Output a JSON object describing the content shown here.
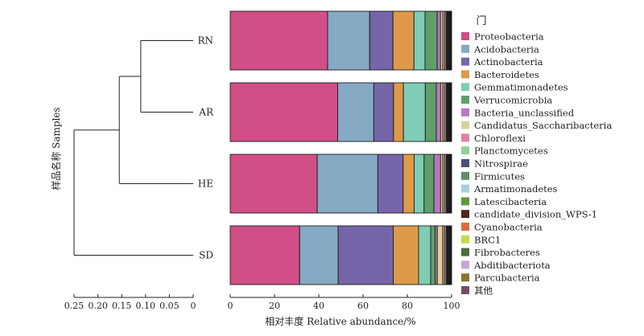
{
  "chart_data": {
    "type": "bar",
    "orientation": "horizontal",
    "stacked": true,
    "samples": [
      "RN",
      "AR",
      "HE",
      "SD"
    ],
    "xlabel": "相对丰度 Relative abundance/%",
    "ylabel": "样品名称 Samples",
    "xlim": [
      0,
      100
    ],
    "xticks": [
      0,
      20,
      40,
      60,
      80,
      100
    ],
    "legend_title": "门",
    "legend_position": "right",
    "dendrogram": {
      "axis_ticks": [
        "0.25",
        "0.20",
        "0.15",
        "0.10",
        "0.05",
        "0"
      ],
      "axis_values": [
        0.25,
        0.2,
        0.15,
        0.1,
        0.05,
        0
      ],
      "merges": [
        {
          "members": [
            "RN",
            "AR"
          ],
          "height": 0.11
        },
        {
          "members": [
            "RN-AR",
            "HE"
          ],
          "height": 0.155
        },
        {
          "members": [
            "RN-AR-HE",
            "SD"
          ],
          "height": 0.25
        }
      ]
    },
    "series": [
      {
        "name": "Proteobacteria",
        "color": "#d14f86",
        "values": [
          44.0,
          49.0,
          39.5,
          31.5
        ]
      },
      {
        "name": "Acidobacteria",
        "color": "#86a9c4",
        "values": [
          19.0,
          16.5,
          27.5,
          17.5
        ]
      },
      {
        "name": "Actinobacteria",
        "color": "#7665a8",
        "values": [
          10.5,
          9.0,
          11.5,
          25.0
        ]
      },
      {
        "name": "Bacteroidetes",
        "color": "#dc9a4a",
        "values": [
          9.5,
          4.5,
          5.0,
          11.5
        ]
      },
      {
        "name": "Gemmatimonadetes",
        "color": "#7fcdb6",
        "values": [
          5.0,
          10.0,
          4.5,
          5.5
        ]
      },
      {
        "name": "Verrucomicrobia",
        "color": "#5ea06a",
        "values": [
          5.5,
          5.0,
          4.5,
          2.0
        ]
      },
      {
        "name": "Bacteria_unclassified",
        "color": "#b579bd",
        "values": [
          1.5,
          2.0,
          3.0,
          1.0
        ]
      },
      {
        "name": "Candidatus_Saccharibacteria",
        "color": "#d9d39a",
        "values": [
          1.0,
          1.0,
          1.0,
          2.5
        ]
      },
      {
        "name": "Chloroflexi",
        "color": "#e3829c",
        "values": [
          1.0,
          1.0,
          1.0,
          1.0
        ]
      },
      {
        "name": "Planctomycetes",
        "color": "#8fd097",
        "values": [
          0.6,
          0.6,
          0.6,
          0.6
        ]
      },
      {
        "name": "Nitrospirae",
        "color": "#4a4e7a",
        "values": [
          0.4,
          0.4,
          0.4,
          0.4
        ]
      },
      {
        "name": "Firmicutes",
        "color": "#5f8c6c",
        "values": [
          0.4,
          0.4,
          0.4,
          0.4
        ]
      },
      {
        "name": "Armatimonadetes",
        "color": "#a9cfe0",
        "values": [
          0.3,
          0.3,
          0.3,
          0.3
        ]
      },
      {
        "name": "Latescibacteria",
        "color": "#5e9a3a",
        "values": [
          0.3,
          0.3,
          0.3,
          0.3
        ]
      },
      {
        "name": "candidate_division_WPS-1",
        "color": "#4a2a1c",
        "values": [
          0.2,
          0.2,
          0.2,
          0.2
        ]
      },
      {
        "name": "Cyanobacteria",
        "color": "#d86e3e",
        "values": [
          0.2,
          0.2,
          0.2,
          0.2
        ]
      },
      {
        "name": "BRC1",
        "color": "#c9d84c",
        "values": [
          0.2,
          0.2,
          0.2,
          0.2
        ]
      },
      {
        "name": "Fibrobacteres",
        "color": "#4b6c3a",
        "values": [
          0.1,
          0.1,
          0.1,
          0.1
        ]
      },
      {
        "name": "Abditibacteriota",
        "color": "#c7a6d6",
        "values": [
          0.1,
          0.1,
          0.1,
          0.1
        ]
      },
      {
        "name": "Parcubacteria",
        "color": "#8c7430",
        "values": [
          0.1,
          0.1,
          0.1,
          0.1
        ]
      },
      {
        "name": "其他",
        "color": "#6f4f66",
        "values": [
          0.1,
          0.1,
          0.1,
          0.1
        ]
      }
    ]
  }
}
